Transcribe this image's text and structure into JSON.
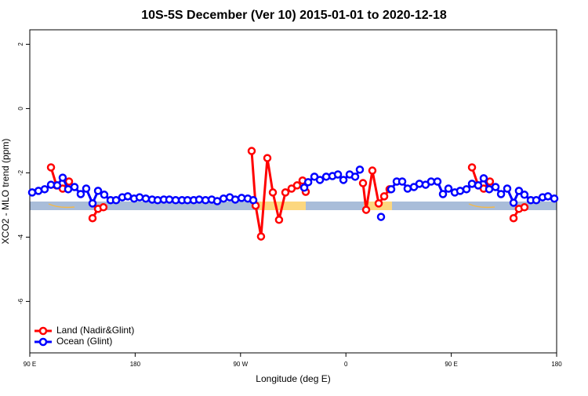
{
  "chart_data": {
    "type": "line",
    "title": "10S-5S December (Ver 10)   2015-01-01 to 2020-12-18",
    "x_label": "Longitude (deg E)",
    "y_label": "XCO2 - MLO trend (ppm)",
    "xlim": [
      90,
      540
    ],
    "ylim": [
      -7.6,
      2.45
    ],
    "xticks": [
      {
        "value": 90,
        "label": "90 E"
      },
      {
        "value": 180,
        "label": "180"
      },
      {
        "value": 270,
        "label": "90 W"
      },
      {
        "value": 360,
        "label": "0"
      },
      {
        "value": 450,
        "label": "90 E"
      },
      {
        "value": 540,
        "label": "180"
      }
    ],
    "yticks": [
      2,
      0,
      -2,
      -4,
      -6
    ],
    "legend": "bottom-left",
    "series": [
      {
        "name": "Land (Nadir&Glint)",
        "color": "#ff0000",
        "x": [
          108.1,
          112.8,
          118.1,
          123.5,
          null,
          143.6,
          148.3,
          152.9,
          null,
          279.5,
          282.9,
          287.5,
          292.9,
          297.6,
          302.9,
          308.3,
          313.6,
          318.3,
          323,
          325.7,
          null,
          374.6,
          377.3,
          382.6,
          388,
          392.7,
          397.3,
          null,
          467.7,
          473,
          477.7,
          483,
          null,
          503.2,
          507.8,
          512.5
        ],
        "values": [
          -1.83,
          -2.39,
          -2.49,
          -2.27,
          null,
          -3.41,
          -3.12,
          -3.07,
          null,
          -1.32,
          -3.02,
          -3.98,
          -1.54,
          -2.61,
          -3.46,
          -2.61,
          -2.49,
          -2.39,
          -2.24,
          -2.59,
          null,
          -2.32,
          -3.15,
          -1.93,
          -2.95,
          -2.73,
          -2.51,
          null,
          -1.83,
          -2.39,
          -2.49,
          -2.27,
          null,
          -3.41,
          -3.12,
          -3.07
        ]
      },
      {
        "name": "Ocean (Glint)",
        "color": "#0000ff",
        "x": [
          92,
          97.4,
          102.7,
          108.1,
          113.4,
          118.1,
          122.8,
          128.2,
          133.5,
          138.2,
          143.6,
          148.3,
          153.6,
          159,
          163.7,
          169,
          173.7,
          179.1,
          183.8,
          189.1,
          194.5,
          199.2,
          204.5,
          209.2,
          214.6,
          220,
          224.7,
          230,
          234.7,
          240.1,
          245.4,
          250.1,
          255.5,
          260.8,
          265.5,
          270.9,
          276.2,
          280.9,
          null,
          324.4,
          327.8,
          333.1,
          337.8,
          343.2,
          348.5,
          353.2,
          357.9,
          363.2,
          367.9,
          371.9,
          null,
          390,
          null,
          398.7,
          403.4,
          408.1,
          412.7,
          418.1,
          422.8,
          428.1,
          432.8,
          438.2,
          442.9,
          447.6,
          453,
          457.6,
          463,
          467.7,
          473,
          477.7,
          482.4,
          487.8,
          492.5,
          497.8,
          503.2,
          507.8,
          512.5,
          517.9,
          522.6,
          528,
          532.6,
          538
        ],
        "values": [
          -2.61,
          -2.56,
          -2.51,
          -2.37,
          -2.39,
          -2.15,
          -2.51,
          -2.44,
          -2.66,
          -2.49,
          -2.95,
          -2.56,
          -2.68,
          -2.85,
          -2.85,
          -2.76,
          -2.73,
          -2.8,
          -2.76,
          -2.8,
          -2.83,
          -2.85,
          -2.83,
          -2.83,
          -2.85,
          -2.85,
          -2.85,
          -2.85,
          -2.83,
          -2.85,
          -2.83,
          -2.88,
          -2.8,
          -2.76,
          -2.83,
          -2.78,
          -2.8,
          -2.85,
          null,
          -2.46,
          -2.29,
          -2.12,
          -2.22,
          -2.12,
          -2.1,
          -2.05,
          -2.22,
          -2.05,
          -2.12,
          -1.9,
          null,
          -3.37,
          null,
          -2.51,
          -2.27,
          -2.27,
          -2.49,
          -2.44,
          -2.34,
          -2.37,
          -2.27,
          -2.27,
          -2.66,
          -2.49,
          -2.61,
          -2.56,
          -2.51,
          -2.34,
          -2.39,
          -2.17,
          -2.51,
          -2.44,
          -2.66,
          -2.49,
          -2.93,
          -2.56,
          -2.68,
          -2.85,
          -2.85,
          -2.76,
          -2.73,
          -2.8
        ]
      }
    ]
  }
}
